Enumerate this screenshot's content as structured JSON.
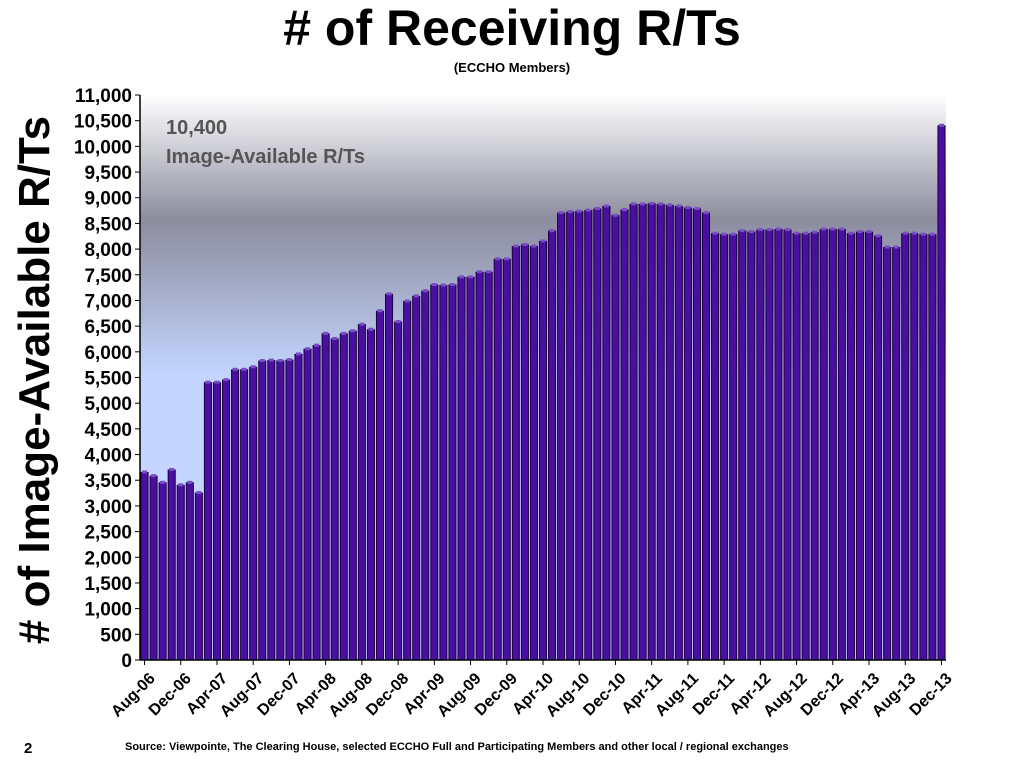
{
  "page": {
    "number": "2",
    "source": "Source: Viewpointe, The Clearing House, selected ECCHO Full and Participating Members and other local / regional exchanges"
  },
  "colors": {
    "bar": "#4b0fa0",
    "bar_edge": "#1a0044",
    "bg_top": "#ffffff",
    "bg_mid": "#8c8c9e",
    "bg_bottom": "#c4d6ff",
    "annotation": "#555555"
  },
  "chart_data": {
    "type": "bar",
    "title": "# of Receiving R/Ts",
    "subtitle": "(ECCHO Members)",
    "xlabel": "",
    "ylabel": "# of Image-Available R/Ts",
    "ylim": [
      0,
      11000
    ],
    "yticks": [
      0,
      500,
      1000,
      1500,
      2000,
      2500,
      3000,
      3500,
      4000,
      4500,
      5000,
      5500,
      6000,
      6500,
      7000,
      7500,
      8000,
      8500,
      9000,
      9500,
      10000,
      10500,
      11000
    ],
    "ytick_labels": [
      "0",
      "500",
      "1,000",
      "1,500",
      "2,000",
      "2,500",
      "3,000",
      "3,500",
      "4,000",
      "4,500",
      "5,000",
      "5,500",
      "6,000",
      "6,500",
      "7,000",
      "7,500",
      "8,000",
      "8,500",
      "9,000",
      "9,500",
      "10,000",
      "10,500",
      "11,000"
    ],
    "x_tick_labels": [
      "Aug-06",
      "Dec-06",
      "Apr-07",
      "Aug-07",
      "Dec-07",
      "Apr-08",
      "Aug-08",
      "Dec-08",
      "Apr-09",
      "Aug-09",
      "Dec-09",
      "Apr-10",
      "Aug-10",
      "Dec-10",
      "Apr-11",
      "Aug-11",
      "Dec-11",
      "Apr-12",
      "Aug-12",
      "Dec-12",
      "Apr-13",
      "Aug-13",
      "Dec-13"
    ],
    "x_tick_every": 4,
    "annotation": {
      "value": "10,400",
      "label": "Image-Available R/Ts"
    },
    "grid": false,
    "values": [
      3650,
      3580,
      3450,
      3700,
      3400,
      3450,
      3250,
      5400,
      5400,
      5450,
      5650,
      5650,
      5700,
      5820,
      5830,
      5820,
      5840,
      5950,
      6050,
      6120,
      6350,
      6250,
      6350,
      6400,
      6530,
      6430,
      6790,
      7120,
      6580,
      6980,
      7080,
      7180,
      7300,
      7290,
      7300,
      7450,
      7450,
      7550,
      7550,
      7800,
      7800,
      8050,
      8080,
      8050,
      8150,
      8350,
      8700,
      8720,
      8730,
      8750,
      8780,
      8830,
      8650,
      8760,
      8870,
      8870,
      8880,
      8870,
      8850,
      8830,
      8800,
      8780,
      8700,
      8300,
      8280,
      8280,
      8350,
      8330,
      8370,
      8370,
      8380,
      8370,
      8300,
      8300,
      8320,
      8380,
      8380,
      8380,
      8300,
      8330,
      8330,
      8250,
      8030,
      8030,
      8300,
      8300,
      8280,
      8280,
      10400
    ]
  }
}
